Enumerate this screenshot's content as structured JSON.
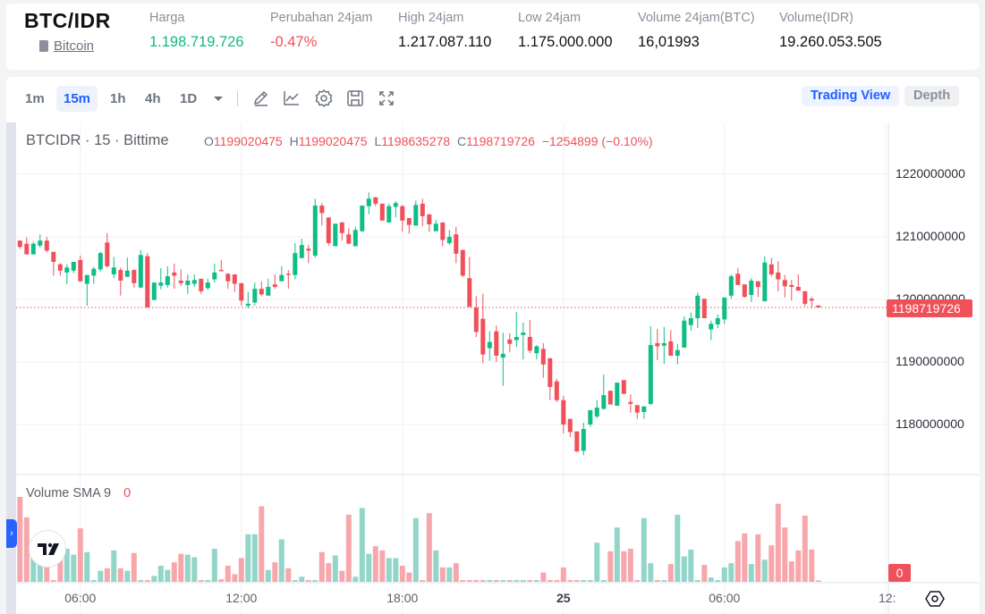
{
  "header": {
    "pair": "BTC/IDR",
    "coin_name": "Bitcoin",
    "stats": [
      {
        "label": "Harga",
        "value": "1.198.719.726",
        "color": "#10b981"
      },
      {
        "label": "Perubahan 24jam",
        "value": "-0.47%",
        "color": "#f0505a"
      },
      {
        "label": "High 24jam",
        "value": "1.217.087.110",
        "color": "#111111"
      },
      {
        "label": "Low 24jam",
        "value": "1.175.000.000",
        "color": "#111111"
      },
      {
        "label": "Volume 24jam(BTC)",
        "value": "16,01993",
        "color": "#111111"
      },
      {
        "label": "Volume(IDR)",
        "value": "19.260.053.505",
        "color": "#111111"
      }
    ]
  },
  "toolbar": {
    "timeframes": [
      "1m",
      "15m",
      "1h",
      "4h",
      "1D"
    ],
    "active_timeframe": "15m",
    "icons": [
      "draw-pencil-icon",
      "indicator-chart-icon",
      "settings-gear-icon",
      "save-icon",
      "fullscreen-icon"
    ],
    "trading_view_label": "Trading View",
    "depth_label": "Depth"
  },
  "legend": {
    "title": "BTCIDR · 15 · Bittime",
    "o_key": "O",
    "o_val": "1199020475",
    "h_key": "H",
    "h_val": "1199020475",
    "l_key": "L",
    "l_val": "1198635278",
    "c_key": "C",
    "c_val": "1198719726",
    "change": "−1254899 (−0.10%)"
  },
  "volume_legend": {
    "label": "Volume SMA 9",
    "value": "0"
  },
  "last_price_label": "1198719726",
  "volume_axis_label": "0",
  "colors": {
    "up": "#0fbd86",
    "down": "#f0505a",
    "vol_up": "#92d5c9",
    "vol_down": "#f7a7ab",
    "accent": "#1f5eff"
  },
  "chart_data": {
    "type": "candlestick",
    "interval": "15",
    "ylim": [
      1172100000,
      1228300000
    ],
    "grid": true,
    "price_ticks": [
      {
        "value": 1220000000,
        "label": "1220000000"
      },
      {
        "value": 1210000000,
        "label": "1210000000"
      },
      {
        "value": 1200000000,
        "label": "1200000000"
      },
      {
        "value": 1190000000,
        "label": "1190000000"
      },
      {
        "value": 1180000000,
        "label": "1180000000"
      }
    ],
    "time_ticks": [
      {
        "label": "06:00",
        "bold": false
      },
      {
        "label": "12:00",
        "bold": false
      },
      {
        "label": "18:00",
        "bold": false
      },
      {
        "label": "25",
        "bold": true
      },
      {
        "label": "06:00",
        "bold": false
      },
      {
        "label": "12:",
        "bold": false
      }
    ],
    "last_price": 1198719726,
    "candles_ohlc": [
      [
        1209400000.0,
        1209400000.0,
        1208100000.0,
        1208400000.0
      ],
      [
        1208900000.0,
        1209900000.0,
        1207200000.0,
        1207200000.0
      ],
      [
        1207200000.0,
        1209200000.0,
        1207200000.0,
        1208900000.0
      ],
      [
        1208600000.0,
        1210400000.0,
        1208300000.0,
        1209400000.0
      ],
      [
        1209400000.0,
        1210000000.0,
        1207500000.0,
        1207800000.0
      ],
      [
        1207600000.0,
        1207600000.0,
        1203800000.0,
        1206000000.0
      ],
      [
        1205600000.0,
        1205800000.0,
        1203800000.0,
        1204600000.0
      ],
      [
        1204300000.0,
        1205600000.0,
        1202400000.0,
        1205100000.0
      ],
      [
        1204600000.0,
        1206000000.0,
        1204200000.0,
        1206000000.0
      ],
      [
        1206300000.0,
        1207000000.0,
        1202800000.0,
        1202900000.0
      ],
      [
        1202500000.0,
        1203900000.0,
        1199000000.0,
        1203900000.0
      ],
      [
        1203800000.0,
        1205200000.0,
        1202500000.0,
        1204900000.0
      ],
      [
        1204800000.0,
        1207600000.0,
        1204500000.0,
        1207400000.0
      ],
      [
        1209100000.0,
        1210600000.0,
        1205100000.0,
        1205300000.0
      ],
      [
        1204000000.0,
        1206800000.0,
        1203400000.0,
        1205100000.0
      ],
      [
        1204700000.0,
        1205100000.0,
        1200600000.0,
        1203000000.0
      ],
      [
        1203600000.0,
        1206700000.0,
        1203600000.0,
        1204600000.0
      ],
      [
        1204700000.0,
        1204800000.0,
        1201900000.0,
        1202600000.0
      ],
      [
        1201900000.0,
        1207900000.0,
        1201800000.0,
        1207100000.0
      ],
      [
        1206900000.0,
        1207400000.0,
        1198700000.0,
        1198700000.0
      ],
      [
        1199900000.0,
        1202700000.0,
        1199900000.0,
        1202700000.0
      ],
      [
        1202200000.0,
        1205000000.0,
        1201600000.0,
        1202700000.0
      ],
      [
        1202300000.0,
        1205300000.0,
        1201900000.0,
        1203700000.0
      ],
      [
        1204300000.0,
        1205700000.0,
        1201700000.0,
        1203800000.0
      ],
      [
        1203000000.0,
        1204800000.0,
        1202200000.0,
        1202600000.0
      ],
      [
        1202300000.0,
        1204000000.0,
        1200900000.0,
        1203000000.0
      ],
      [
        1202500000.0,
        1204000000.0,
        1202000000.0,
        1203100000.0
      ],
      [
        1203300000.0,
        1203300000.0,
        1200900000.0,
        1201300000.0
      ],
      [
        1201800000.0,
        1203300000.0,
        1201500000.0,
        1202700000.0
      ],
      [
        1203200000.0,
        1205700000.0,
        1202700000.0,
        1204300000.0
      ],
      [
        1204700000.0,
        1206300000.0,
        1204500000.0,
        1204500000.0
      ],
      [
        1204100000.0,
        1204200000.0,
        1201700000.0,
        1202900000.0
      ],
      [
        1204000000.0,
        1204000000.0,
        1201200000.0,
        1202500000.0
      ],
      [
        1202600000.0,
        1202600000.0,
        1199000000.0,
        1199800000.0
      ],
      [
        1199000000.0,
        1201200000.0,
        1198600000.0,
        1199300000.0
      ],
      [
        1199500000.0,
        1202700000.0,
        1199000000.0,
        1201700000.0
      ],
      [
        1201700000.0,
        1202900000.0,
        1200500000.0,
        1200800000.0
      ],
      [
        1200600000.0,
        1203300000.0,
        1200600000.0,
        1202000000.0
      ],
      [
        1202400000.0,
        1204000000.0,
        1201700000.0,
        1202000000.0
      ],
      [
        1202900000.0,
        1205300000.0,
        1202900000.0,
        1203900000.0
      ],
      [
        1204100000.0,
        1204700000.0,
        1201700000.0,
        1203900000.0
      ],
      [
        1203900000.0,
        1209000000.0,
        1203200000.0,
        1207400000.0
      ],
      [
        1206600000.0,
        1209700000.0,
        1206600000.0,
        1208700000.0
      ],
      [
        1208100000.0,
        1208700000.0,
        1205800000.0,
        1207800000.0
      ],
      [
        1207000000.0,
        1216100000.0,
        1206700000.0,
        1215000000.0
      ],
      [
        1215000000.0,
        1215400000.0,
        1211800000.0,
        1213800000.0
      ],
      [
        1213100000.0,
        1213100000.0,
        1208600000.0,
        1209000000.0
      ],
      [
        1208500000.0,
        1212100000.0,
        1208500000.0,
        1212100000.0
      ],
      [
        1212300000.0,
        1212400000.0,
        1209400000.0,
        1210600000.0
      ],
      [
        1210400000.0,
        1211400000.0,
        1208900000.0,
        1208900000.0
      ],
      [
        1208500000.0,
        1211600000.0,
        1208500000.0,
        1211100000.0
      ],
      [
        1210900000.0,
        1215000000.0,
        1210800000.0,
        1215000000.0
      ],
      [
        1214900000.0,
        1217100000.0,
        1213600000.0,
        1216100000.0
      ],
      [
        1216300000.0,
        1216400000.0,
        1214900000.0,
        1215300000.0
      ],
      [
        1215300000.0,
        1215300000.0,
        1212600000.0,
        1212600000.0
      ],
      [
        1212300000.0,
        1215300000.0,
        1212300000.0,
        1214900000.0
      ],
      [
        1214800000.0,
        1215700000.0,
        1213100000.0,
        1215400000.0
      ],
      [
        1214900000.0,
        1215100000.0,
        1210800000.0,
        1212600000.0
      ],
      [
        1213000000.0,
        1213000000.0,
        1210500000.0,
        1211900000.0
      ],
      [
        1211800000.0,
        1215800000.0,
        1211800000.0,
        1215100000.0
      ],
      [
        1215300000.0,
        1216100000.0,
        1211700000.0,
        1213300000.0
      ],
      [
        1213600000.0,
        1213600000.0,
        1210800000.0,
        1212000000.0
      ],
      [
        1210900000.0,
        1212700000.0,
        1210900000.0,
        1212100000.0
      ],
      [
        1212300000.0,
        1212300000.0,
        1208500000.0,
        1209500000.0
      ],
      [
        1209000000.0,
        1211100000.0,
        1208700000.0,
        1210000000.0
      ],
      [
        1210400000.0,
        1211600000.0,
        1205800000.0,
        1207300000.0
      ],
      [
        1207900000.0,
        1207900000.0,
        1203600000.0,
        1203800000.0
      ],
      [
        1203400000.0,
        1206800000.0,
        1198800000.0,
        1198800000.0
      ],
      [
        1198700000.0,
        1200500000.0,
        1194000000.0,
        1194800000.0
      ],
      [
        1196900000.0,
        1200900000.0,
        1189800000.0,
        1191200000.0
      ],
      [
        1192200000.0,
        1194900000.0,
        1190200000.0,
        1193200000.0
      ],
      [
        1194900000.0,
        1195800000.0,
        1190000000.0,
        1191000000.0
      ],
      [
        1190700000.0,
        1194700000.0,
        1186200000.0,
        1191300000.0
      ],
      [
        1193600000.0,
        1194600000.0,
        1191600000.0,
        1192900000.0
      ],
      [
        1193500000.0,
        1198000000.0,
        1192400000.0,
        1194000000.0
      ],
      [
        1194300000.0,
        1196300000.0,
        1190400000.0,
        1194700000.0
      ],
      [
        1194000000.0,
        1196700000.0,
        1191400000.0,
        1191800000.0
      ],
      [
        1191400000.0,
        1192700000.0,
        1190400000.0,
        1192500000.0
      ],
      [
        1192100000.0,
        1193000000.0,
        1187500000.0,
        1189600000.0
      ],
      [
        1190600000.0,
        1190600000.0,
        1183900000.0,
        1186000000.0
      ],
      [
        1186900000.0,
        1187300000.0,
        1183600000.0,
        1183900000.0
      ],
      [
        1183900000.0,
        1184600000.0,
        1178600000.0,
        1180000000.0
      ],
      [
        1180900000.0,
        1180900000.0,
        1178000000.0,
        1178800000.0
      ],
      [
        1178900000.0,
        1178900000.0,
        1175600000.0,
        1175700000.0
      ],
      [
        1175800000.0,
        1180300000.0,
        1175100000.0,
        1179300000.0
      ],
      [
        1180000000.0,
        1182300000.0,
        1179600000.0,
        1182300000.0
      ],
      [
        1181300000.0,
        1183900000.0,
        1181000000.0,
        1182700000.0
      ],
      [
        1182500000.0,
        1188000000.0,
        1182400000.0,
        1184700000.0
      ],
      [
        1185400000.0,
        1185400000.0,
        1183200000.0,
        1183200000.0
      ],
      [
        1183000000.0,
        1186700000.0,
        1183000000.0,
        1186700000.0
      ],
      [
        1187100000.0,
        1187100000.0,
        1184900000.0,
        1184900000.0
      ],
      [
        1183600000.0,
        1184800000.0,
        1181900000.0,
        1183300000.0
      ],
      [
        1183100000.0,
        1183100000.0,
        1180900000.0,
        1181900000.0
      ],
      [
        1182000000.0,
        1182900000.0,
        1180900000.0,
        1182900000.0
      ],
      [
        1183300000.0,
        1195700000.0,
        1183100000.0,
        1192700000.0
      ],
      [
        1193000000.0,
        1195300000.0,
        1190300000.0,
        1192500000.0
      ],
      [
        1192600000.0,
        1195600000.0,
        1189700000.0,
        1193000000.0
      ],
      [
        1193300000.0,
        1195100000.0,
        1191000000.0,
        1191000000.0
      ],
      [
        1191000000.0,
        1192900000.0,
        1189600000.0,
        1191900000.0
      ],
      [
        1192300000.0,
        1197300000.0,
        1192300000.0,
        1196600000.0
      ],
      [
        1195900000.0,
        1197900000.0,
        1195000000.0,
        1197000000.0
      ],
      [
        1197000000.0,
        1201100000.0,
        1195400000.0,
        1200600000.0
      ],
      [
        1200100000.0,
        1200100000.0,
        1197000000.0,
        1197000000.0
      ],
      [
        1195200000.0,
        1196600000.0,
        1193500000.0,
        1196100000.0
      ],
      [
        1196000000.0,
        1197600000.0,
        1195400000.0,
        1197000000.0
      ],
      [
        1196800000.0,
        1200300000.0,
        1196100000.0,
        1200300000.0
      ],
      [
        1200600000.0,
        1204000000.0,
        1200100000.0,
        1203700000.0
      ],
      [
        1204100000.0,
        1205000000.0,
        1202300000.0,
        1202300000.0
      ],
      [
        1202400000.0,
        1202400000.0,
        1200300000.0,
        1200400000.0
      ],
      [
        1200700000.0,
        1203400000.0,
        1199600000.0,
        1203000000.0
      ],
      [
        1202900000.0,
        1202900000.0,
        1200400000.0,
        1202000000.0
      ],
      [
        1199700000.0,
        1206900000.0,
        1199700000.0,
        1205900000.0
      ],
      [
        1205600000.0,
        1206600000.0,
        1203700000.0,
        1204000000.0
      ],
      [
        1204300000.0,
        1206100000.0,
        1201300000.0,
        1203200000.0
      ],
      [
        1203100000.0,
        1203900000.0,
        1200300000.0,
        1202100000.0
      ],
      [
        1202300000.0,
        1203100000.0,
        1199800000.0,
        1202000000.0
      ],
      [
        1202000000.0,
        1204000000.0,
        1201400000.0,
        1201400000.0
      ],
      [
        1201300000.0,
        1201300000.0,
        1198900000.0,
        1199300000.0
      ],
      [
        1200100000.0,
        1200400000.0,
        1198600000.0,
        1199800000.0
      ],
      [
        1199020475,
        1199020475,
        1198635278,
        1198719726
      ]
    ],
    "volumes_relative": [
      100,
      76,
      42,
      40,
      42,
      2,
      51,
      39,
      32,
      63,
      35,
      2,
      13,
      16,
      37,
      16,
      13,
      34,
      2,
      2,
      7,
      19,
      14,
      23,
      33,
      32,
      29,
      2,
      2,
      39,
      3,
      19,
      9,
      28,
      56,
      56,
      89,
      14,
      23,
      50,
      16,
      2,
      6,
      2,
      2,
      35,
      22,
      31,
      13,
      79,
      6,
      87,
      33,
      42,
      37,
      28,
      28,
      19,
      11,
      75,
      2,
      81,
      37,
      17,
      17,
      22,
      2,
      2,
      2,
      2,
      2,
      2,
      2,
      2,
      2,
      2,
      2,
      2,
      11,
      2,
      2,
      17,
      2,
      2,
      2,
      2,
      46,
      2,
      36,
      64,
      36,
      39,
      2,
      75,
      22,
      2,
      2,
      21,
      79,
      30,
      38,
      2,
      20,
      5,
      2,
      17,
      22,
      48,
      57,
      21,
      56,
      26,
      43,
      92,
      64,
      24,
      37,
      78,
      38,
      1
    ]
  }
}
